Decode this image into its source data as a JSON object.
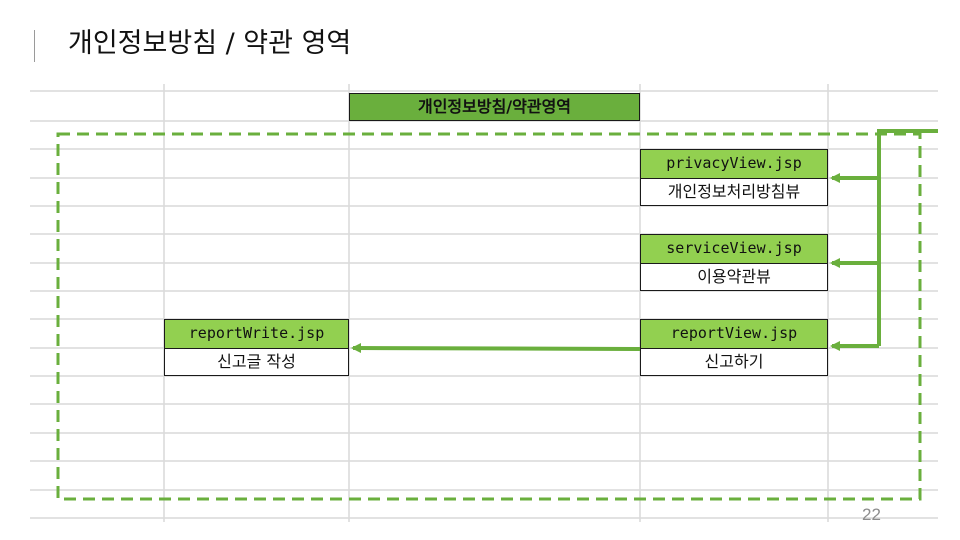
{
  "slide": {
    "title": "개인정보방침 / 약관 영역",
    "page_number": "22"
  },
  "diagram": {
    "header": "개인정보방침/약관영역",
    "nodes": {
      "privacy": {
        "file": "privacyView.jsp",
        "desc": "개인정보처리방침뷰"
      },
      "service": {
        "file": "serviceView.jsp",
        "desc": "이용약관뷰"
      },
      "report": {
        "file": "reportView.jsp",
        "desc": "신고하기"
      },
      "report_write": {
        "file": "reportWrite.jsp",
        "desc": "신고글 작성"
      }
    },
    "colors": {
      "arrow": "#6aaf3d",
      "file_fill": "#92d050",
      "header_fill": "#6aaf3d",
      "region_border": "#6aaf3d",
      "grid": "#d9d9d9"
    }
  }
}
